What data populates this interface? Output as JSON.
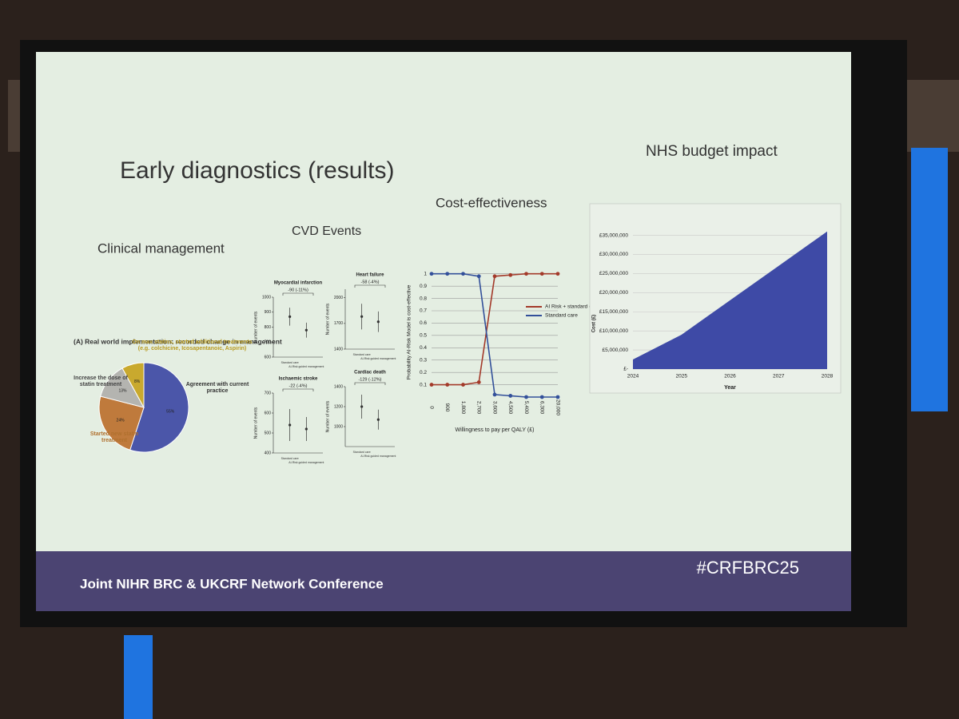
{
  "slide": {
    "title": "Early diagnostics (results)",
    "headings": [
      "Clinical management",
      "CVD Events",
      "Cost-effectiveness",
      "NHS budget impact"
    ],
    "footer": "Joint NIHR BRC & UKCRF Network Conference",
    "hashtag": "#CRFBRC25"
  },
  "chart_data": [
    {
      "type": "pie",
      "title": "(A) Real world implementation: recorded change in management",
      "categories": [
        "Agreement with current practice",
        "Started new statin treatment",
        "Increase the dose of statin treatment",
        "On max statins, started additional treatments (e.g. colchicine, Icosapentanoic, Aspirin)"
      ],
      "values": [
        55,
        24,
        13,
        8
      ],
      "value_labels": [
        "55%",
        "24%",
        "13%",
        "8%"
      ],
      "colors": [
        "#4b56a9",
        "#bf7a3c",
        "#b4b4b0",
        "#c9a92e"
      ],
      "label_colors": [
        "#333333",
        "#b0702e",
        "#444444",
        "#b89a20"
      ]
    },
    {
      "type": "dot",
      "title": "Myocardial infarction",
      "annotation": "-90 (-11%)",
      "ylabel": "Number of events",
      "categories": [
        "Standard care",
        "AI-Risk guided management"
      ],
      "values": [
        870,
        780
      ],
      "errors": [
        60,
        50
      ],
      "ylim": [
        600,
        1000
      ],
      "yticks": [
        600,
        700,
        800,
        900,
        1000
      ],
      "color": "#333333"
    },
    {
      "type": "dot",
      "title": "Heart failure",
      "annotation": "-58 (-4%)",
      "ylabel": "Number of events",
      "categories": [
        "Standard care",
        "AI-Risk guided management"
      ],
      "values": [
        1780,
        1720
      ],
      "errors": [
        150,
        120
      ],
      "ylim": [
        1400,
        2100
      ],
      "yticks": [
        1400,
        1700,
        2000
      ],
      "color": "#333333"
    },
    {
      "type": "dot",
      "title": "Ischaemic stroke",
      "annotation": "-22 (-4%)",
      "ylabel": "Number of events",
      "categories": [
        "Standard care",
        "AI-Risk guided management"
      ],
      "values": [
        540,
        520
      ],
      "errors": [
        80,
        60
      ],
      "ylim": [
        400,
        700
      ],
      "yticks": [
        400,
        500,
        600,
        700
      ],
      "color": "#333333"
    },
    {
      "type": "dot",
      "title": "Cardiac death",
      "annotation": "-129 (-12%)",
      "ylabel": "Number of events",
      "categories": [
        "Standard care",
        "AI-Risk guided management"
      ],
      "values": [
        1200,
        1070
      ],
      "errors": [
        120,
        100
      ],
      "ylim": [
        800,
        1400
      ],
      "yticks": [
        1000,
        1200,
        1400
      ],
      "color": "#333333"
    },
    {
      "type": "line",
      "ylabel": "Probability AI-Risk Model is cost-effective",
      "xlabel": "Willingness to pay per QALY (£)",
      "categories": [
        "0",
        "900",
        "1,800",
        "2,700",
        "3,600",
        "4,500",
        "5,400",
        "6,300",
        "20,000"
      ],
      "series": [
        {
          "name": "AI Risk + standard c",
          "color": "#a33a2a",
          "values": [
            0.1,
            0.1,
            0.1,
            0.12,
            0.98,
            0.99,
            1,
            1,
            1
          ]
        },
        {
          "name": "Standard care",
          "color": "#33509a",
          "values": [
            1,
            1,
            1,
            0.98,
            0.02,
            0.01,
            0,
            0,
            0
          ]
        }
      ],
      "ylim": [
        0,
        1.05
      ],
      "yticks": [
        0.1,
        0.2,
        0.3,
        0.4,
        0.5,
        0.6,
        0.7,
        0.8,
        0.9,
        1
      ],
      "grid": true
    },
    {
      "type": "area",
      "ylabel": "Cost (£)",
      "xlabel": "Year",
      "categories": [
        "2024",
        "2025",
        "2026",
        "2027",
        "2028"
      ],
      "values": [
        2500000,
        9000000,
        18000000,
        27000000,
        36000000
      ],
      "color": "#3e4aa6",
      "ylim": [
        0,
        37000000
      ],
      "grid": true,
      "yticks": [
        {
          "value": 0,
          "label": "£-"
        },
        {
          "value": 5000000,
          "label": "£5,000,000"
        },
        {
          "value": 10000000,
          "label": "£10,000,000"
        },
        {
          "value": 15000000,
          "label": "£15,000,000"
        },
        {
          "value": 20000000,
          "label": "£20,000,000"
        },
        {
          "value": 25000000,
          "label": "£25,000,000"
        },
        {
          "value": 30000000,
          "label": "£30,000,000"
        },
        {
          "value": 35000000,
          "label": "£35,000,000"
        }
      ]
    }
  ]
}
